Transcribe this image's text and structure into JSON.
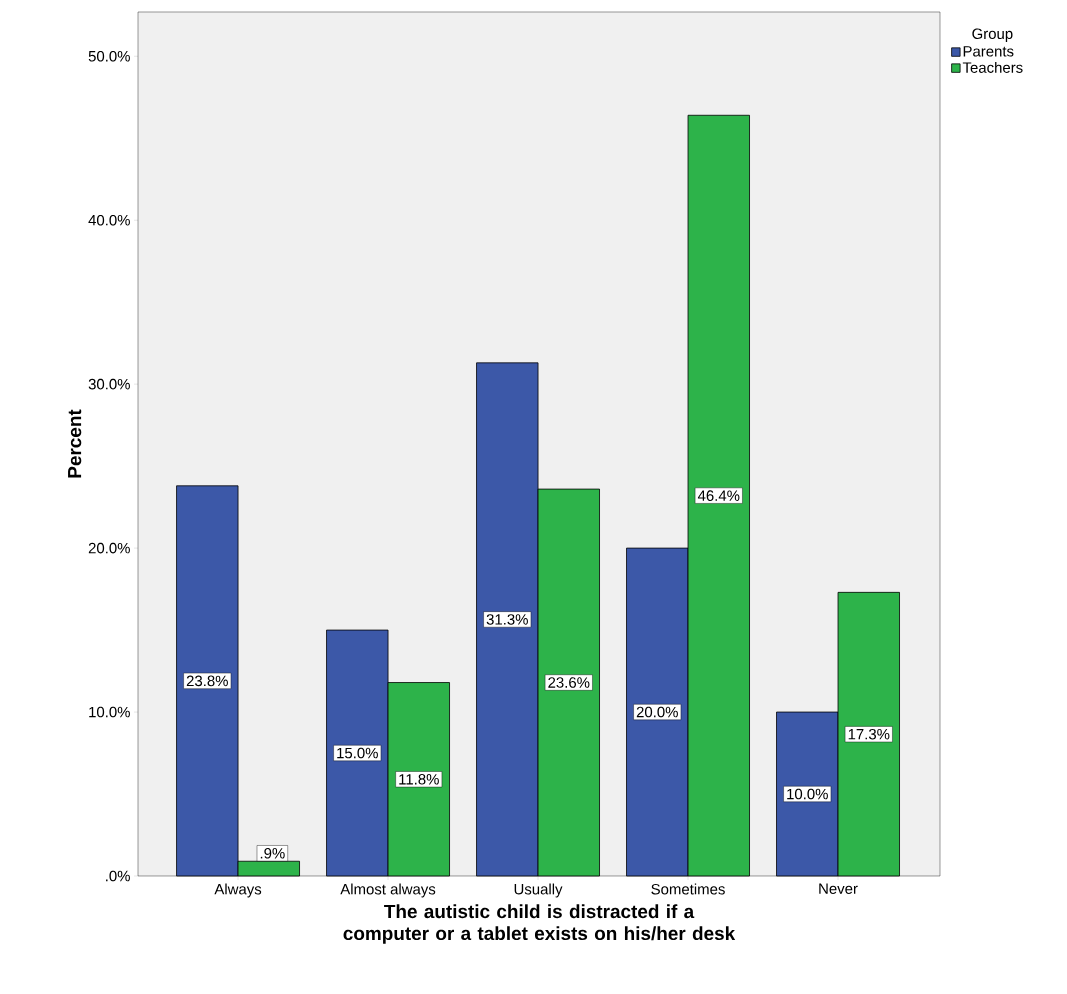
{
  "chart_data": {
    "type": "bar",
    "xlabel": "The autistic child is distracted if a computer or a tablet exists on his/her desk",
    "ylabel": "Percent",
    "legend_title": "Group",
    "legend": "top right",
    "categories": [
      "Always",
      "Almost always",
      "Usually",
      "Sometimes",
      "Never"
    ],
    "ylim": [
      0,
      52.7
    ],
    "yticks": [
      {
        "value": 0,
        "label": ".0%"
      },
      {
        "value": 10,
        "label": "10.0%"
      },
      {
        "value": 20,
        "label": "20.0%"
      },
      {
        "value": 30,
        "label": "30.0%"
      },
      {
        "value": 40,
        "label": "40.0%"
      },
      {
        "value": 50,
        "label": "50.0%"
      }
    ],
    "series": [
      {
        "name": "Parents",
        "color": "#3c58a8",
        "values": [
          23.8,
          15.0,
          31.3,
          20.0,
          10.0
        ],
        "value_labels": [
          "23.8%",
          "15.0%",
          "31.3%",
          "20.0%",
          "10.0%"
        ]
      },
      {
        "name": "Teachers",
        "color": "#2db34a",
        "values": [
          0.9,
          11.8,
          23.6,
          46.4,
          17.3
        ],
        "value_labels": [
          ".9%",
          "11.8%",
          "23.6%",
          "46.4%",
          "17.3%"
        ]
      }
    ]
  }
}
